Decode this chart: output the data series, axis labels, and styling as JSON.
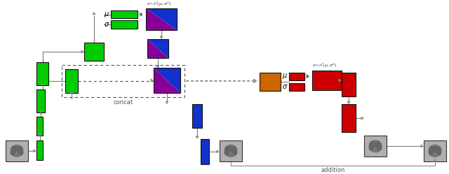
{
  "bg": "#ffffff",
  "GREEN": "#00cc00",
  "BLUE": "#1133cc",
  "RED": "#cc0000",
  "ORANGE": "#cc6600",
  "PURPLE": "#880099",
  "gray_line": "#888888",
  "dark": "#222222",
  "text_color": "#333333",
  "dashed_color": "#555555"
}
